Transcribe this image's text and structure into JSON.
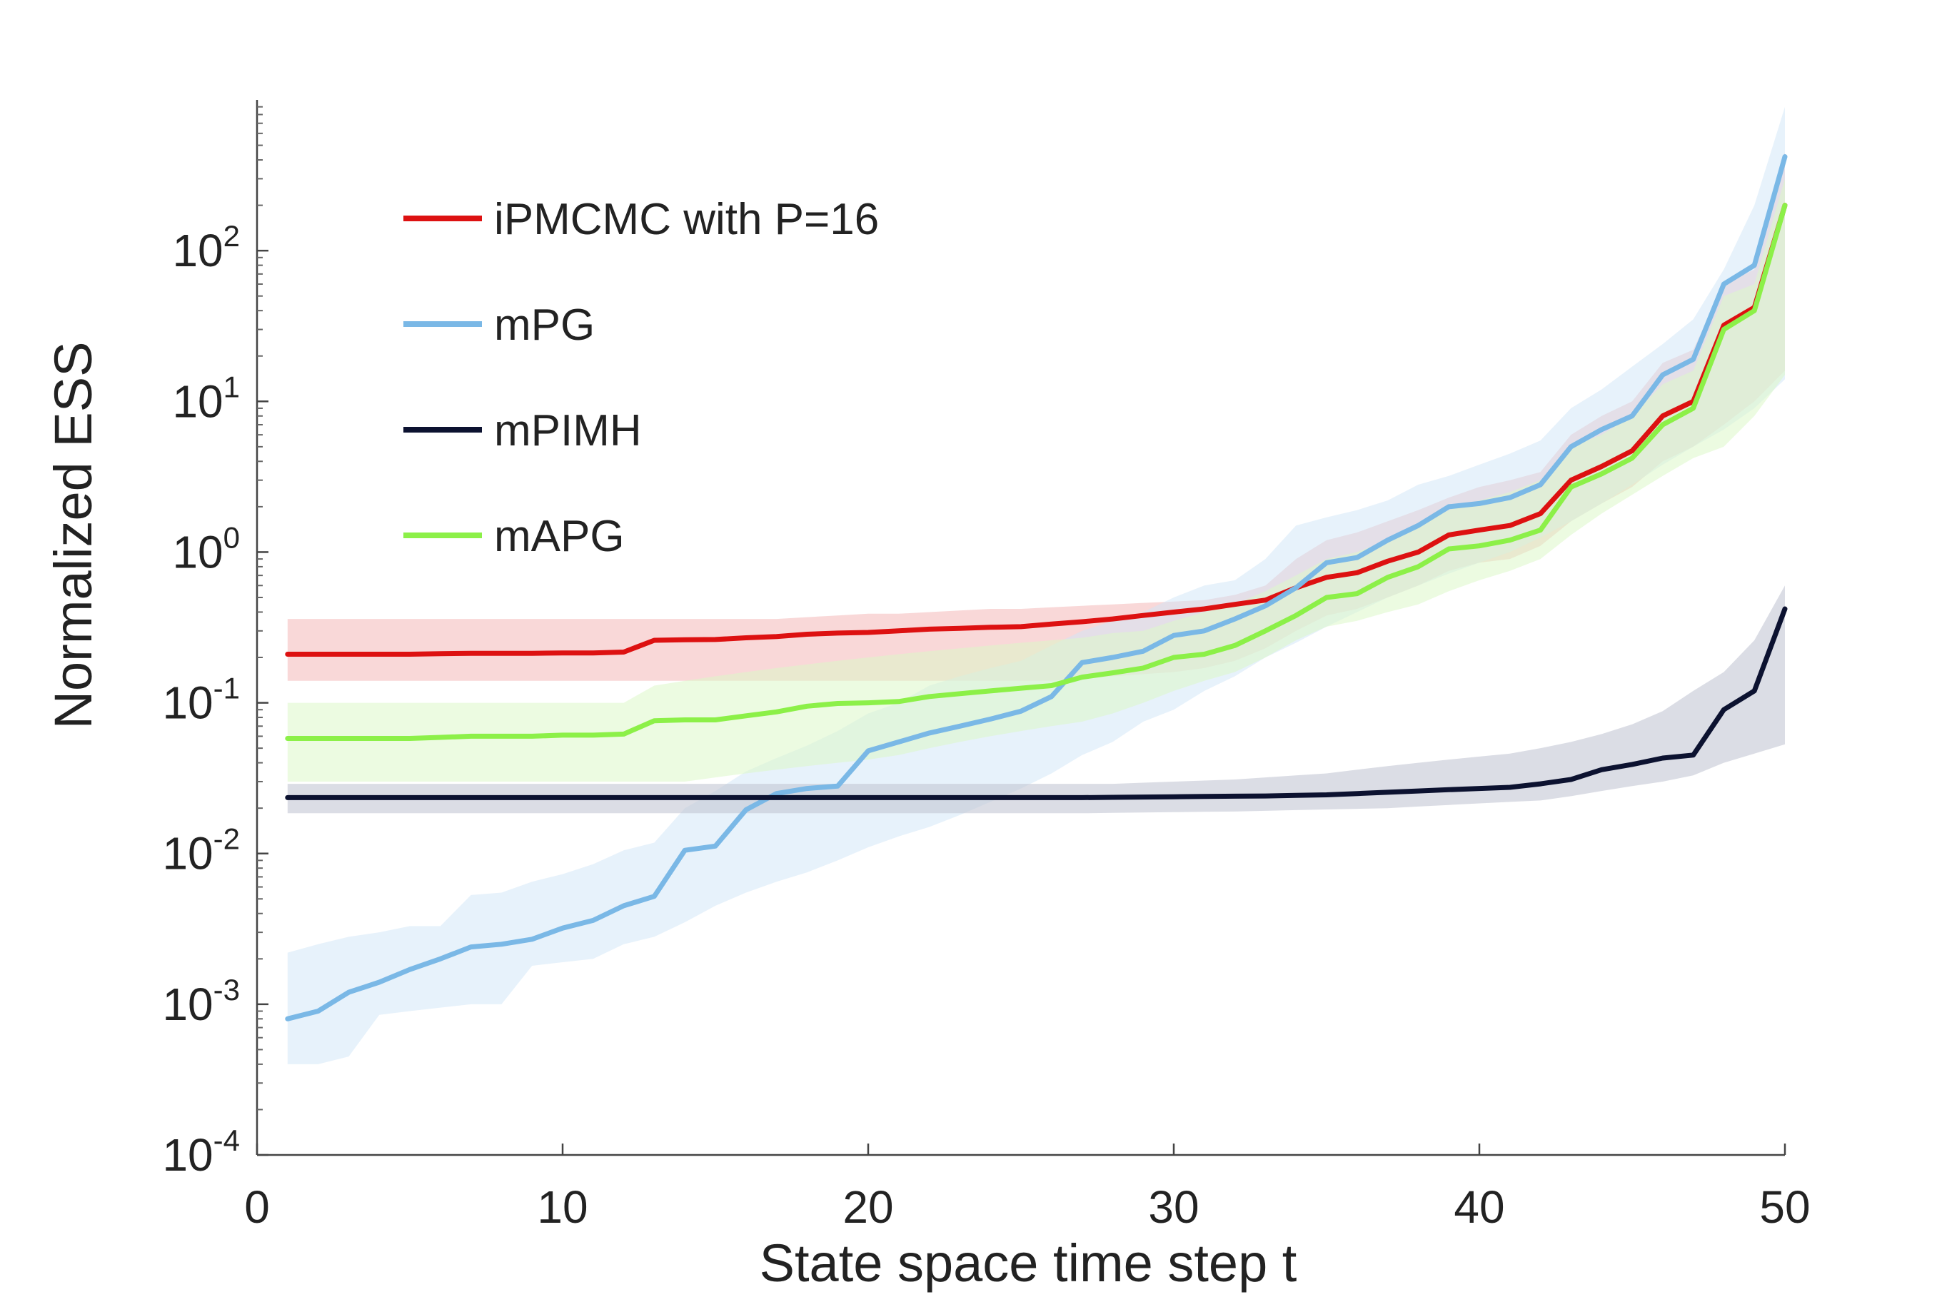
{
  "chart_data": {
    "type": "line",
    "xlabel": "State space time step t",
    "ylabel": "Normalized ESS",
    "xlim": [
      0,
      50
    ],
    "ylim_log10": [
      -4,
      3
    ],
    "yscale": "log",
    "legend_position": "top-left",
    "grid": false,
    "x_ticks": [
      {
        "value": 0,
        "label": "0"
      },
      {
        "value": 10,
        "label": "10"
      },
      {
        "value": 20,
        "label": "20"
      },
      {
        "value": 30,
        "label": "30"
      },
      {
        "value": 40,
        "label": "40"
      },
      {
        "value": 50,
        "label": "50"
      }
    ],
    "y_ticks": [
      {
        "exp": -4,
        "base": "10",
        "sup": "-4"
      },
      {
        "exp": -3,
        "base": "10",
        "sup": "-3"
      },
      {
        "exp": -2,
        "base": "10",
        "sup": "-2"
      },
      {
        "exp": -1,
        "base": "10",
        "sup": "-1"
      },
      {
        "exp": 0,
        "base": "10",
        "sup": "0"
      },
      {
        "exp": 1,
        "base": "10",
        "sup": "1"
      },
      {
        "exp": 2,
        "base": "10",
        "sup": "2"
      }
    ],
    "x": [
      1,
      2,
      3,
      4,
      5,
      6,
      7,
      8,
      9,
      10,
      11,
      12,
      13,
      14,
      15,
      16,
      17,
      18,
      19,
      20,
      21,
      22,
      23,
      24,
      25,
      26,
      27,
      28,
      29,
      30,
      31,
      32,
      33,
      34,
      35,
      36,
      37,
      38,
      39,
      40,
      41,
      42,
      43,
      44,
      45,
      46,
      47,
      48,
      49,
      50
    ],
    "series": [
      {
        "name": "iPMCMC with P=16",
        "color": "#dd1111",
        "band_color": "#f4b8b8",
        "band_opacity": 0.55,
        "values": [
          0.21,
          0.21,
          0.21,
          0.21,
          0.21,
          0.212,
          0.213,
          0.213,
          0.213,
          0.214,
          0.214,
          0.217,
          0.26,
          0.262,
          0.263,
          0.27,
          0.275,
          0.285,
          0.29,
          0.293,
          0.3,
          0.308,
          0.312,
          0.317,
          0.32,
          0.333,
          0.345,
          0.36,
          0.38,
          0.4,
          0.42,
          0.45,
          0.48,
          0.58,
          0.68,
          0.73,
          0.87,
          1.0,
          1.3,
          1.4,
          1.5,
          1.8,
          3.0,
          3.7,
          4.7,
          8.0,
          10.0,
          32.0,
          42.0,
          200.0
        ],
        "lower": [
          0.14,
          0.14,
          0.14,
          0.14,
          0.14,
          0.14,
          0.14,
          0.14,
          0.14,
          0.14,
          0.14,
          0.14,
          0.14,
          0.14,
          0.14,
          0.14,
          0.14,
          0.14,
          0.14,
          0.14,
          0.14,
          0.14,
          0.14,
          0.14,
          0.14,
          0.14,
          0.145,
          0.15,
          0.155,
          0.16,
          0.17,
          0.19,
          0.23,
          0.3,
          0.38,
          0.42,
          0.5,
          0.6,
          0.75,
          0.85,
          0.9,
          1.1,
          1.6,
          2.1,
          2.7,
          4.0,
          5.0,
          7.0,
          10.0,
          16.0
        ],
        "upper": [
          0.36,
          0.36,
          0.36,
          0.36,
          0.36,
          0.36,
          0.36,
          0.36,
          0.36,
          0.36,
          0.36,
          0.36,
          0.36,
          0.36,
          0.36,
          0.36,
          0.36,
          0.37,
          0.38,
          0.39,
          0.39,
          0.4,
          0.41,
          0.42,
          0.42,
          0.43,
          0.44,
          0.45,
          0.46,
          0.47,
          0.48,
          0.52,
          0.6,
          0.9,
          1.2,
          1.35,
          1.6,
          1.9,
          2.3,
          2.7,
          3.0,
          3.4,
          6.0,
          8.0,
          10.0,
          18.0,
          22.0,
          60.0,
          75.0,
          450.0
        ]
      },
      {
        "name": "mPG",
        "color": "#7ab8e6",
        "band_color": "#cfe6f8",
        "band_opacity": 0.5,
        "values": [
          0.0008,
          0.0009,
          0.0012,
          0.0014,
          0.0017,
          0.002,
          0.0024,
          0.0025,
          0.0027,
          0.0032,
          0.0036,
          0.0045,
          0.0052,
          0.0105,
          0.0112,
          0.0195,
          0.025,
          0.027,
          0.028,
          0.048,
          0.055,
          0.063,
          0.07,
          0.078,
          0.088,
          0.11,
          0.185,
          0.2,
          0.22,
          0.28,
          0.3,
          0.36,
          0.44,
          0.58,
          0.85,
          0.92,
          1.2,
          1.5,
          2.0,
          2.1,
          2.3,
          2.8,
          5.0,
          6.5,
          8.0,
          15.0,
          19.0,
          60.0,
          80.0,
          420.0
        ],
        "lower": [
          0.0004,
          0.0004,
          0.00045,
          0.00085,
          0.0009,
          0.00095,
          0.001,
          0.001,
          0.0018,
          0.0019,
          0.002,
          0.0025,
          0.0028,
          0.0035,
          0.0045,
          0.0055,
          0.0065,
          0.0075,
          0.009,
          0.011,
          0.013,
          0.015,
          0.018,
          0.022,
          0.027,
          0.034,
          0.045,
          0.055,
          0.075,
          0.09,
          0.12,
          0.15,
          0.2,
          0.25,
          0.32,
          0.4,
          0.5,
          0.6,
          0.72,
          0.85,
          1.0,
          1.25,
          1.6,
          2.1,
          2.8,
          3.8,
          5.0,
          6.5,
          9.0,
          14.0
        ],
        "upper": [
          0.0022,
          0.0025,
          0.0028,
          0.003,
          0.0033,
          0.0033,
          0.0053,
          0.0055,
          0.0065,
          0.0073,
          0.0085,
          0.0105,
          0.0118,
          0.02,
          0.026,
          0.035,
          0.043,
          0.052,
          0.065,
          0.085,
          0.1,
          0.13,
          0.15,
          0.17,
          0.19,
          0.24,
          0.3,
          0.35,
          0.4,
          0.5,
          0.6,
          0.65,
          0.9,
          1.5,
          1.7,
          1.9,
          2.2,
          2.8,
          3.2,
          3.8,
          4.5,
          5.5,
          9.0,
          12.0,
          17.0,
          24.0,
          35.0,
          75.0,
          200.0,
          900.0
        ]
      },
      {
        "name": "mPIMH",
        "color": "#0c1230",
        "band_color": "#c3c6d3",
        "band_opacity": 0.6,
        "values": [
          0.0235,
          0.0235,
          0.0235,
          0.0235,
          0.0235,
          0.0235,
          0.0235,
          0.0235,
          0.0235,
          0.0235,
          0.0235,
          0.0235,
          0.0235,
          0.0235,
          0.0235,
          0.0235,
          0.0235,
          0.0235,
          0.0235,
          0.0235,
          0.0235,
          0.0235,
          0.0235,
          0.0235,
          0.0235,
          0.0235,
          0.0235,
          0.0236,
          0.0237,
          0.0238,
          0.0239,
          0.024,
          0.0241,
          0.0243,
          0.0245,
          0.025,
          0.0255,
          0.026,
          0.0265,
          0.027,
          0.0275,
          0.029,
          0.031,
          0.036,
          0.039,
          0.043,
          0.045,
          0.09,
          0.12,
          0.42
        ],
        "lower": [
          0.0185,
          0.0185,
          0.0185,
          0.0185,
          0.0185,
          0.0185,
          0.0185,
          0.0185,
          0.0185,
          0.0185,
          0.0185,
          0.0185,
          0.0185,
          0.0185,
          0.0185,
          0.0185,
          0.0185,
          0.0185,
          0.0185,
          0.0185,
          0.0185,
          0.0185,
          0.0185,
          0.0185,
          0.0185,
          0.0185,
          0.0185,
          0.0186,
          0.0187,
          0.0188,
          0.0189,
          0.019,
          0.0192,
          0.0194,
          0.0196,
          0.0198,
          0.02,
          0.0205,
          0.021,
          0.0215,
          0.022,
          0.0225,
          0.024,
          0.026,
          0.028,
          0.03,
          0.033,
          0.04,
          0.046,
          0.053
        ],
        "upper": [
          0.029,
          0.029,
          0.029,
          0.029,
          0.029,
          0.029,
          0.029,
          0.029,
          0.029,
          0.029,
          0.029,
          0.029,
          0.029,
          0.029,
          0.029,
          0.029,
          0.029,
          0.029,
          0.029,
          0.029,
          0.029,
          0.029,
          0.029,
          0.029,
          0.029,
          0.029,
          0.029,
          0.029,
          0.0295,
          0.03,
          0.0305,
          0.031,
          0.032,
          0.033,
          0.034,
          0.036,
          0.038,
          0.04,
          0.042,
          0.044,
          0.046,
          0.05,
          0.055,
          0.062,
          0.072,
          0.088,
          0.12,
          0.16,
          0.26,
          0.6
        ]
      },
      {
        "name": "mAPG",
        "color": "#8cf048",
        "band_color": "#dcf7c8",
        "band_opacity": 0.55,
        "values": [
          0.058,
          0.058,
          0.058,
          0.058,
          0.058,
          0.059,
          0.06,
          0.06,
          0.06,
          0.061,
          0.061,
          0.062,
          0.076,
          0.077,
          0.077,
          0.082,
          0.087,
          0.095,
          0.099,
          0.1,
          0.102,
          0.11,
          0.115,
          0.12,
          0.125,
          0.13,
          0.148,
          0.158,
          0.17,
          0.2,
          0.21,
          0.24,
          0.3,
          0.38,
          0.5,
          0.53,
          0.68,
          0.8,
          1.05,
          1.1,
          1.2,
          1.4,
          2.7,
          3.3,
          4.2,
          7.0,
          9.0,
          30.0,
          40.0,
          200.0
        ],
        "lower": [
          0.03,
          0.03,
          0.03,
          0.03,
          0.03,
          0.03,
          0.03,
          0.03,
          0.03,
          0.03,
          0.03,
          0.03,
          0.03,
          0.03,
          0.032,
          0.034,
          0.036,
          0.038,
          0.04,
          0.042,
          0.045,
          0.05,
          0.055,
          0.06,
          0.065,
          0.07,
          0.075,
          0.085,
          0.1,
          0.12,
          0.14,
          0.16,
          0.2,
          0.26,
          0.32,
          0.35,
          0.4,
          0.45,
          0.55,
          0.65,
          0.75,
          0.9,
          1.3,
          1.8,
          2.4,
          3.2,
          4.2,
          5.0,
          8.0,
          15.0
        ],
        "upper": [
          0.1,
          0.1,
          0.1,
          0.1,
          0.1,
          0.1,
          0.1,
          0.1,
          0.1,
          0.1,
          0.1,
          0.1,
          0.13,
          0.14,
          0.15,
          0.16,
          0.17,
          0.18,
          0.19,
          0.2,
          0.21,
          0.22,
          0.23,
          0.24,
          0.25,
          0.26,
          0.27,
          0.29,
          0.3,
          0.35,
          0.4,
          0.45,
          0.55,
          0.7,
          0.9,
          1.0,
          1.2,
          1.5,
          1.9,
          2.2,
          2.5,
          3.0,
          5.0,
          6.0,
          8.0,
          13.0,
          16.0,
          50.0,
          60.0,
          300.0
        ]
      }
    ]
  }
}
